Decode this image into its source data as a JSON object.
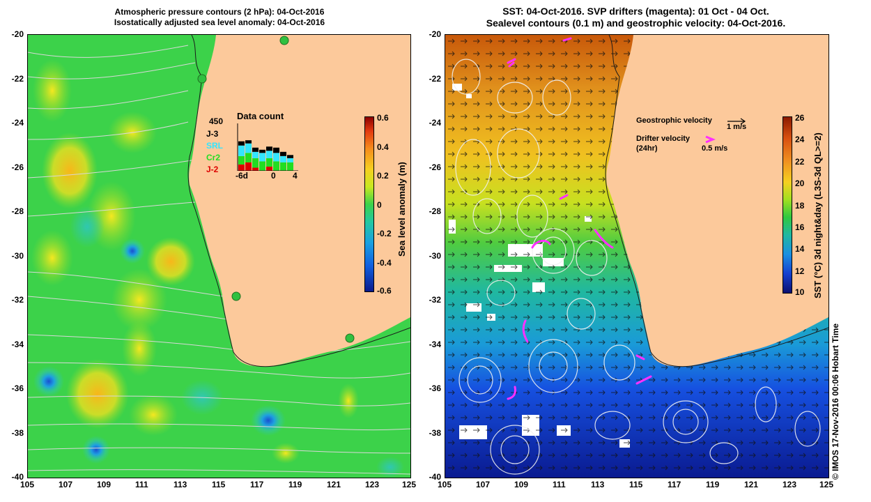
{
  "left_panel": {
    "title_line1": "Atmospheric pressure contours (2 hPa): 04-Oct-2016",
    "title_line2": "Isostatically adjusted sea level anomaly: 04-Oct-2016",
    "y_ticks": [
      "-20",
      "-22",
      "-24",
      "-26",
      "-28",
      "-30",
      "-32",
      "-34",
      "-36",
      "-38",
      "-40"
    ],
    "x_ticks": [
      "105",
      "107",
      "109",
      "111",
      "113",
      "115",
      "117",
      "119",
      "121",
      "123",
      "125"
    ],
    "colorbar": {
      "label": "Sea level anomaly (m)",
      "ticks": [
        "0.6",
        "0.4",
        "0.2",
        "0",
        "-0.2",
        "-0.4",
        "-0.6"
      ]
    },
    "data_count": {
      "title": "Data count",
      "max_label": "450",
      "series": [
        "J-3",
        "SRL",
        "Cr2",
        "J-2"
      ],
      "series_colors": [
        "#000000",
        "#33e5ff",
        "#22dd22",
        "#dd0000"
      ],
      "x_labels": [
        "-6d",
        "0",
        "4"
      ],
      "bars": [
        {
          "j3": 40,
          "srl": 100,
          "cr2": 80,
          "j2": 60
        },
        {
          "j3": 30,
          "srl": 90,
          "cr2": 90,
          "j2": 80
        },
        {
          "j3": 40,
          "srl": 60,
          "cr2": 90,
          "j2": 30
        },
        {
          "j3": 30,
          "srl": 80,
          "cr2": 90,
          "j2": 0
        },
        {
          "j3": 40,
          "srl": 70,
          "cr2": 80,
          "j2": 40
        },
        {
          "j3": 50,
          "srl": 80,
          "cr2": 90,
          "j2": 0
        },
        {
          "j3": 40,
          "srl": 60,
          "cr2": 80,
          "j2": 0
        },
        {
          "j3": 30,
          "srl": 40,
          "cr2": 80,
          "j2": 0
        }
      ]
    }
  },
  "right_panel": {
    "title_line1": "SST: 04-Oct-2016. SVP drifters (magenta): 01 Oct - 04 Oct.",
    "title_line2": "Sealevel contours (0.1 m) and geostrophic velocity: 04-Oct-2016.",
    "y_ticks": [
      "-20",
      "-22",
      "-24",
      "-26",
      "-28",
      "-30",
      "-32",
      "-34",
      "-36",
      "-38",
      "-40"
    ],
    "x_ticks": [
      "105",
      "107",
      "109",
      "111",
      "113",
      "115",
      "117",
      "119",
      "121",
      "123",
      "125"
    ],
    "colorbar": {
      "label": "SST (°C) 3d night&day (L3S-3d QL>=2)",
      "ticks": [
        "26",
        "24",
        "22",
        "20",
        "18",
        "16",
        "14",
        "12",
        "10"
      ]
    },
    "legend": {
      "geostrophic_label": "Geostrophic velocity",
      "geostrophic_scale": "1 m/s",
      "drifter_label": "Drifter velocity",
      "drifter_sub": "(24hr)",
      "drifter_scale": "0.5 m/s"
    },
    "credit": "© IMOS 17-Nov-2016 00:06 Hobart Time"
  }
}
